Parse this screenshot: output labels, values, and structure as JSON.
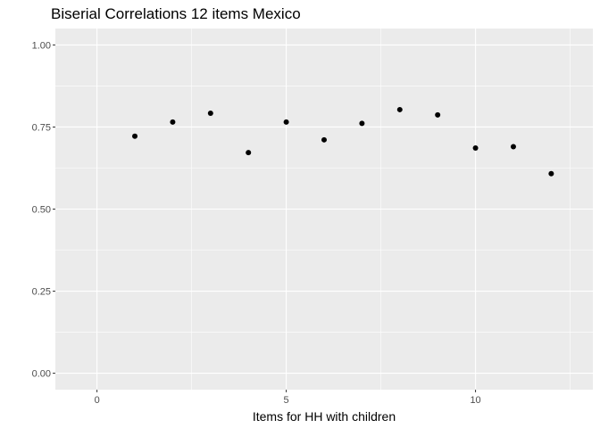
{
  "chart_data": {
    "type": "scatter",
    "title": "Biserial Correlations 12 items Mexico",
    "xlabel": "Items for HH with children",
    "ylabel": "",
    "xlim": [
      -1.1,
      13.1
    ],
    "ylim": [
      -0.05,
      1.05
    ],
    "x_ticks": [
      0,
      5,
      10
    ],
    "x_tick_labels": [
      "0",
      "5",
      "10"
    ],
    "y_ticks": [
      0,
      0.25,
      0.5,
      0.75,
      1.0
    ],
    "y_tick_labels": [
      "0.00",
      "0.25",
      "0.50",
      "0.75",
      "1.00"
    ],
    "grid": true,
    "background": "#ebebeb",
    "grid_color": "#ffffff",
    "point_color": "#000000",
    "points": [
      {
        "x": 1,
        "y": 0.722
      },
      {
        "x": 2,
        "y": 0.765
      },
      {
        "x": 3,
        "y": 0.792
      },
      {
        "x": 4,
        "y": 0.672
      },
      {
        "x": 5,
        "y": 0.765
      },
      {
        "x": 6,
        "y": 0.711
      },
      {
        "x": 7,
        "y": 0.761
      },
      {
        "x": 8,
        "y": 0.803
      },
      {
        "x": 9,
        "y": 0.787
      },
      {
        "x": 10,
        "y": 0.686
      },
      {
        "x": 11,
        "y": 0.69
      },
      {
        "x": 12,
        "y": 0.608
      }
    ]
  }
}
